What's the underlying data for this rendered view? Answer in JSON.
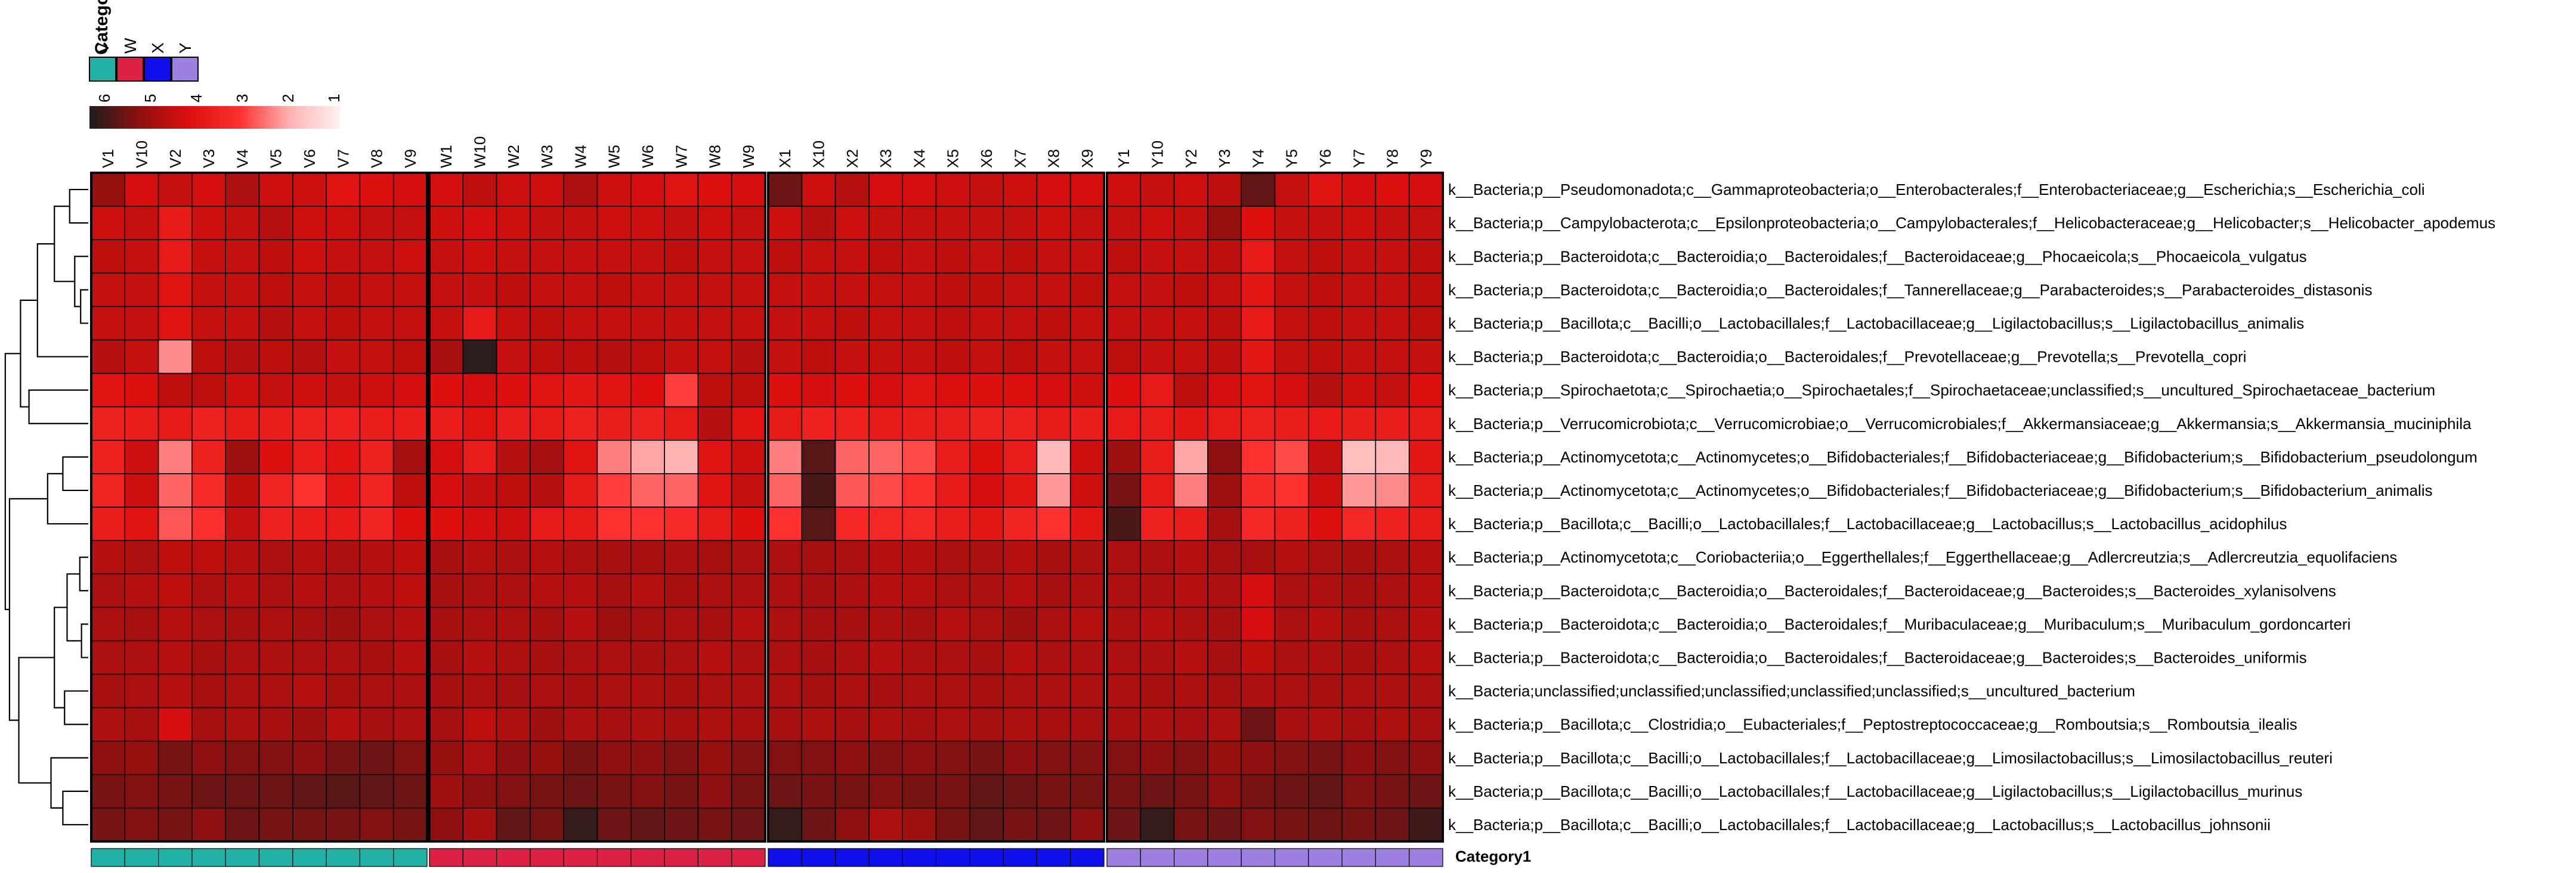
{
  "chart_data": {
    "type": "heatmap",
    "title": "",
    "xlabel": "",
    "ylabel": "",
    "category_annotation": {
      "name": "Category1",
      "legend_entries": [
        {
          "label": "V",
          "color": "#21b1a5"
        },
        {
          "label": "W",
          "color": "#dc2145"
        },
        {
          "label": "X",
          "color": "#1010ef"
        },
        {
          "label": "Y",
          "color": "#9d7fe0"
        }
      ],
      "bottom_label": "Category1"
    },
    "color_scale": {
      "ticks": [
        "6",
        "5",
        "4",
        "3",
        "2",
        "1"
      ],
      "stops": [
        {
          "v": 1,
          "color": "#fff1f1"
        },
        {
          "v": 2,
          "color": "#ffb3b3"
        },
        {
          "v": 3,
          "color": "#ff3030"
        },
        {
          "v": 4,
          "color": "#dd0f0f"
        },
        {
          "v": 5,
          "color": "#8f1010"
        },
        {
          "v": 6,
          "color": "#1e1e1e"
        }
      ]
    },
    "groups": [
      {
        "name": "V",
        "color": "#21b1a5",
        "columns": [
          "V1",
          "V10",
          "V2",
          "V3",
          "V4",
          "V5",
          "V6",
          "V7",
          "V8",
          "V9"
        ]
      },
      {
        "name": "W",
        "color": "#dc2145",
        "columns": [
          "W1",
          "W10",
          "W2",
          "W3",
          "W4",
          "W5",
          "W6",
          "W7",
          "W8",
          "W9"
        ]
      },
      {
        "name": "X",
        "color": "#1010ef",
        "columns": [
          "X1",
          "X10",
          "X2",
          "X3",
          "X4",
          "X5",
          "X6",
          "X7",
          "X8",
          "X9"
        ]
      },
      {
        "name": "Y",
        "color": "#9d7fe0",
        "columns": [
          "Y1",
          "Y10",
          "Y2",
          "Y3",
          "Y4",
          "Y5",
          "Y6",
          "Y7",
          "Y8",
          "Y9"
        ]
      }
    ],
    "rows": [
      "k__Bacteria;p__Pseudomonadota;c__Gammaproteobacteria;o__Enterobacterales;f__Enterobacteriaceae;g__Escherichia;s__Escherichia_coli",
      "k__Bacteria;p__Campylobacterota;c__Epsilonproteobacteria;o__Campylobacterales;f__Helicobacteraceae;g__Helicobacter;s__Helicobacter_apodemus",
      "k__Bacteria;p__Bacteroidota;c__Bacteroidia;o__Bacteroidales;f__Bacteroidaceae;g__Phocaeicola;s__Phocaeicola_vulgatus",
      "k__Bacteria;p__Bacteroidota;c__Bacteroidia;o__Bacteroidales;f__Tannerellaceae;g__Parabacteroides;s__Parabacteroides_distasonis",
      "k__Bacteria;p__Bacillota;c__Bacilli;o__Lactobacillales;f__Lactobacillaceae;g__Ligilactobacillus;s__Ligilactobacillus_animalis",
      "k__Bacteria;p__Bacteroidota;c__Bacteroidia;o__Bacteroidales;f__Prevotellaceae;g__Prevotella;s__Prevotella_copri",
      "k__Bacteria;p__Spirochaetota;c__Spirochaetia;o__Spirochaetales;f__Spirochaetaceae;unclassified;s__uncultured_Spirochaetaceae_bacterium",
      "k__Bacteria;p__Verrucomicrobiota;c__Verrucomicrobiae;o__Verrucomicrobiales;f__Akkermansiaceae;g__Akkermansia;s__Akkermansia_muciniphila",
      "k__Bacteria;p__Actinomycetota;c__Actinomycetes;o__Bifidobacteriales;f__Bifidobacteriaceae;g__Bifidobacterium;s__Bifidobacterium_pseudolongum",
      "k__Bacteria;p__Actinomycetota;c__Actinomycetes;o__Bifidobacteriales;f__Bifidobacteriaceae;g__Bifidobacterium;s__Bifidobacterium_animalis",
      "k__Bacteria;p__Bacillota;c__Bacilli;o__Lactobacillales;f__Lactobacillaceae;g__Lactobacillus;s__Lactobacillus_acidophilus",
      "k__Bacteria;p__Actinomycetota;c__Coriobacteriia;o__Eggerthellales;f__Eggerthellaceae;g__Adlercreutzia;s__Adlercreutzia_equolifaciens",
      "k__Bacteria;p__Bacteroidota;c__Bacteroidia;o__Bacteroidales;f__Bacteroidaceae;g__Bacteroides;s__Bacteroides_xylanisolvens",
      "k__Bacteria;p__Bacteroidota;c__Bacteroidia;o__Bacteroidales;f__Muribaculaceae;g__Muribaculum;s__Muribaculum_gordoncarteri",
      "k__Bacteria;p__Bacteroidota;c__Bacteroidia;o__Bacteroidales;f__Bacteroidaceae;g__Bacteroides;s__Bacteroides_uniformis",
      "k__Bacteria;unclassified;unclassified;unclassified;unclassified;unclassified;s__uncultured_bacterium",
      "k__Bacteria;p__Bacillota;c__Clostridia;o__Eubacteriales;f__Peptostreptococcaceae;g__Romboutsia;s__Romboutsia_ilealis",
      "k__Bacteria;p__Bacillota;c__Bacilli;o__Lactobacillales;f__Lactobacillaceae;g__Limosilactobacillus;s__Limosilactobacillus_reuteri",
      "k__Bacteria;p__Bacillota;c__Bacilli;o__Lactobacillales;f__Lactobacillaceae;g__Ligilactobacillus;s__Ligilactobacillus_murinus",
      "k__Bacteria;p__Bacillota;c__Bacilli;o__Lactobacillales;f__Lactobacillaceae;g__Lactobacillus;s__Lactobacillus_johnsonii"
    ],
    "values": [
      [
        4.9,
        4.1,
        4.3,
        4.1,
        4.6,
        4.2,
        4.2,
        3.9,
        4.0,
        4.1,
        4.1,
        4.4,
        4.2,
        4.2,
        4.6,
        4.2,
        4.1,
        3.9,
        4.0,
        4.1,
        5.3,
        4.2,
        4.5,
        4.1,
        4.1,
        4.2,
        4.3,
        4.2,
        4.1,
        4.1,
        4.2,
        4.3,
        4.2,
        4.4,
        5.4,
        4.3,
        3.9,
        4.1,
        4.0,
        4.1
      ],
      [
        4.2,
        4.3,
        3.7,
        4.2,
        4.3,
        4.5,
        4.2,
        4.2,
        4.3,
        4.3,
        4.2,
        4.1,
        4.2,
        4.3,
        4.3,
        4.2,
        4.2,
        4.3,
        4.2,
        4.3,
        4.2,
        4.5,
        4.2,
        4.3,
        4.3,
        4.3,
        4.3,
        4.3,
        4.2,
        4.3,
        4.3,
        4.2,
        4.3,
        4.9,
        4.0,
        4.3,
        4.3,
        4.2,
        4.3,
        4.3
      ],
      [
        4.4,
        4.3,
        3.7,
        4.3,
        4.3,
        4.4,
        4.2,
        4.3,
        4.3,
        4.2,
        4.3,
        4.2,
        4.3,
        4.3,
        4.3,
        4.3,
        4.3,
        4.4,
        4.3,
        4.3,
        4.4,
        4.3,
        4.3,
        4.4,
        4.3,
        4.4,
        4.3,
        4.4,
        4.3,
        4.3,
        4.4,
        4.3,
        4.3,
        4.4,
        3.7,
        4.3,
        4.4,
        4.3,
        4.3,
        4.4
      ],
      [
        4.3,
        4.3,
        3.9,
        4.3,
        4.3,
        4.4,
        4.3,
        4.4,
        4.3,
        4.3,
        4.3,
        4.3,
        4.4,
        4.3,
        4.3,
        4.4,
        4.3,
        4.3,
        4.3,
        4.3,
        4.3,
        4.3,
        4.3,
        4.3,
        4.3,
        4.4,
        4.4,
        4.3,
        4.3,
        4.4,
        4.3,
        4.3,
        4.4,
        4.3,
        3.8,
        4.3,
        4.4,
        4.3,
        4.3,
        4.4
      ],
      [
        4.3,
        4.3,
        3.9,
        4.3,
        4.3,
        4.5,
        4.3,
        4.4,
        4.3,
        4.3,
        4.3,
        3.7,
        4.3,
        4.4,
        4.3,
        4.3,
        4.3,
        4.3,
        4.3,
        4.3,
        4.3,
        4.3,
        4.4,
        4.3,
        4.3,
        4.4,
        4.3,
        4.3,
        4.4,
        4.3,
        4.3,
        4.3,
        4.3,
        4.4,
        3.7,
        4.3,
        4.4,
        4.3,
        4.3,
        4.4
      ],
      [
        4.5,
        4.3,
        2.3,
        4.4,
        4.5,
        4.4,
        4.5,
        4.3,
        4.3,
        4.4,
        4.7,
        5.9,
        4.3,
        4.4,
        4.4,
        4.5,
        4.4,
        4.3,
        4.3,
        4.5,
        4.3,
        4.4,
        4.3,
        4.3,
        4.3,
        4.4,
        4.3,
        4.4,
        4.3,
        4.3,
        4.4,
        4.3,
        4.3,
        4.4,
        3.8,
        4.3,
        4.4,
        4.3,
        4.3,
        4.3
      ],
      [
        3.9,
        4.0,
        4.4,
        4.4,
        4.2,
        4.3,
        4.2,
        4.3,
        4.2,
        4.1,
        4.0,
        4.1,
        4.0,
        3.9,
        3.8,
        3.9,
        4.0,
        2.9,
        4.4,
        4.4,
        4.0,
        4.1,
        4.0,
        4.1,
        3.9,
        4.0,
        4.0,
        4.0,
        4.1,
        4.2,
        4.0,
        3.7,
        4.4,
        4.1,
        3.9,
        4.1,
        4.5,
        4.2,
        4.3,
        4.0
      ],
      [
        3.5,
        3.6,
        3.7,
        3.5,
        3.7,
        3.6,
        3.5,
        3.5,
        3.6,
        3.6,
        3.6,
        3.9,
        3.6,
        3.7,
        3.5,
        3.6,
        3.5,
        3.7,
        4.5,
        3.9,
        3.7,
        3.5,
        3.5,
        3.7,
        3.6,
        3.6,
        3.5,
        3.5,
        3.7,
        3.6,
        3.7,
        3.6,
        3.8,
        3.7,
        3.5,
        3.6,
        3.7,
        3.6,
        3.6,
        3.7
      ],
      [
        3.5,
        4.2,
        2.4,
        3.5,
        4.8,
        4.0,
        3.6,
        3.9,
        3.5,
        4.7,
        4.1,
        3.6,
        4.5,
        4.7,
        3.9,
        2.4,
        2.1,
        2.0,
        3.9,
        4.2,
        2.4,
        5.5,
        2.6,
        2.6,
        2.8,
        3.6,
        4.0,
        3.6,
        1.9,
        4.2,
        4.8,
        3.6,
        2.1,
        5.0,
        3.0,
        2.8,
        4.3,
        1.8,
        1.9,
        3.8
      ],
      [
        3.4,
        4.2,
        2.6,
        3.2,
        4.4,
        3.4,
        3.0,
        3.8,
        3.4,
        4.4,
        4.1,
        4.3,
        4.4,
        4.5,
        3.7,
        2.9,
        2.6,
        2.6,
        3.9,
        4.3,
        2.6,
        5.6,
        2.7,
        2.8,
        3.1,
        3.7,
        4.1,
        3.8,
        2.2,
        4.2,
        5.2,
        3.7,
        2.4,
        4.8,
        3.2,
        3.0,
        4.2,
        2.2,
        2.3,
        3.7
      ],
      [
        3.6,
        3.9,
        2.7,
        3.1,
        4.3,
        3.5,
        3.6,
        3.7,
        3.4,
        4.0,
        4.0,
        4.1,
        4.2,
        3.7,
        3.7,
        3.0,
        3.0,
        3.2,
        3.7,
        4.0,
        3.0,
        5.5,
        3.3,
        3.3,
        3.3,
        3.6,
        3.8,
        3.4,
        3.0,
        3.8,
        5.6,
        3.5,
        3.6,
        4.7,
        3.3,
        3.5,
        4.0,
        3.3,
        3.5,
        3.7
      ],
      [
        4.5,
        4.6,
        4.4,
        4.4,
        4.5,
        4.6,
        4.5,
        4.6,
        4.5,
        4.4,
        4.7,
        4.5,
        4.6,
        4.5,
        4.6,
        4.7,
        4.7,
        4.6,
        4.7,
        4.6,
        4.6,
        4.7,
        4.6,
        4.5,
        4.5,
        4.6,
        4.6,
        4.5,
        4.7,
        4.6,
        4.6,
        4.6,
        4.5,
        4.7,
        4.7,
        4.5,
        4.6,
        4.7,
        4.6,
        4.5
      ],
      [
        4.6,
        4.5,
        4.4,
        4.6,
        4.5,
        4.6,
        4.5,
        4.6,
        4.5,
        4.4,
        4.7,
        4.6,
        4.6,
        4.5,
        4.5,
        4.7,
        4.5,
        4.7,
        4.6,
        4.6,
        4.6,
        4.7,
        4.6,
        4.5,
        4.5,
        4.6,
        4.6,
        4.5,
        4.7,
        4.6,
        4.6,
        4.6,
        4.5,
        4.6,
        4.1,
        4.6,
        4.6,
        4.7,
        4.6,
        4.5
      ],
      [
        4.6,
        4.7,
        4.5,
        4.6,
        4.7,
        4.6,
        4.7,
        4.8,
        4.6,
        4.5,
        4.7,
        4.6,
        4.6,
        4.7,
        4.5,
        4.8,
        4.7,
        4.6,
        4.7,
        4.5,
        4.6,
        4.7,
        4.7,
        4.6,
        4.7,
        4.5,
        4.6,
        4.8,
        4.6,
        4.5,
        4.6,
        4.5,
        4.6,
        4.7,
        4.1,
        4.6,
        4.5,
        4.7,
        4.6,
        4.5
      ],
      [
        4.6,
        4.6,
        4.5,
        4.7,
        4.6,
        4.6,
        4.6,
        4.6,
        4.7,
        4.5,
        4.7,
        4.5,
        4.6,
        4.7,
        4.6,
        4.6,
        4.7,
        4.6,
        4.5,
        4.6,
        4.6,
        4.7,
        4.6,
        4.5,
        4.6,
        4.6,
        4.7,
        4.5,
        4.6,
        4.6,
        4.6,
        4.6,
        4.5,
        4.7,
        4.4,
        4.6,
        4.6,
        4.7,
        4.6,
        4.5
      ],
      [
        4.7,
        4.6,
        4.5,
        4.7,
        4.6,
        4.6,
        4.5,
        4.7,
        4.6,
        4.6,
        4.7,
        4.6,
        4.7,
        4.6,
        4.7,
        4.6,
        4.6,
        4.7,
        4.6,
        4.6,
        4.6,
        4.7,
        4.6,
        4.7,
        4.6,
        4.6,
        4.7,
        4.6,
        4.6,
        4.6,
        4.6,
        4.7,
        4.6,
        4.7,
        4.6,
        4.6,
        4.7,
        4.6,
        4.6,
        4.6
      ],
      [
        4.6,
        4.7,
        4.1,
        4.7,
        4.6,
        4.7,
        4.8,
        4.5,
        4.7,
        4.6,
        4.7,
        4.4,
        4.6,
        4.8,
        4.6,
        4.7,
        4.6,
        4.7,
        4.6,
        4.7,
        4.7,
        4.6,
        4.7,
        4.6,
        4.7,
        4.6,
        4.7,
        4.6,
        4.7,
        4.7,
        4.7,
        4.6,
        4.7,
        4.6,
        5.3,
        4.7,
        4.6,
        4.7,
        4.6,
        4.7
      ],
      [
        5.0,
        4.9,
        5.2,
        5.0,
        5.1,
        5.1,
        5.0,
        5.2,
        5.3,
        5.1,
        4.9,
        4.6,
        5.0,
        4.9,
        5.2,
        5.0,
        5.0,
        5.1,
        4.9,
        5.1,
        5.1,
        5.1,
        5.0,
        5.1,
        5.0,
        5.1,
        5.2,
        5.0,
        5.1,
        5.1,
        5.1,
        5.0,
        5.1,
        4.9,
        5.0,
        5.1,
        5.2,
        5.0,
        5.1,
        5.0
      ],
      [
        5.2,
        5.1,
        5.2,
        5.3,
        5.3,
        5.3,
        5.4,
        5.5,
        5.4,
        5.3,
        4.8,
        5.0,
        5.1,
        5.2,
        5.3,
        5.2,
        5.1,
        5.2,
        5.0,
        5.2,
        5.3,
        5.2,
        5.2,
        5.1,
        5.2,
        5.2,
        5.4,
        5.3,
        5.2,
        5.2,
        5.2,
        5.3,
        5.2,
        5.0,
        5.2,
        5.3,
        5.4,
        5.1,
        5.2,
        5.3
      ],
      [
        5.2,
        5.1,
        5.2,
        5.0,
        5.3,
        5.2,
        5.2,
        5.2,
        5.1,
        5.2,
        5.0,
        4.7,
        5.4,
        5.2,
        5.8,
        5.3,
        5.4,
        5.3,
        5.2,
        5.3,
        5.8,
        5.3,
        5.0,
        4.6,
        4.8,
        5.2,
        5.4,
        5.2,
        5.3,
        5.0,
        5.3,
        5.8,
        5.2,
        5.3,
        5.1,
        5.2,
        5.3,
        5.2,
        5.3,
        5.7
      ]
    ]
  },
  "dendrogram_icon": "row-dendrogram"
}
